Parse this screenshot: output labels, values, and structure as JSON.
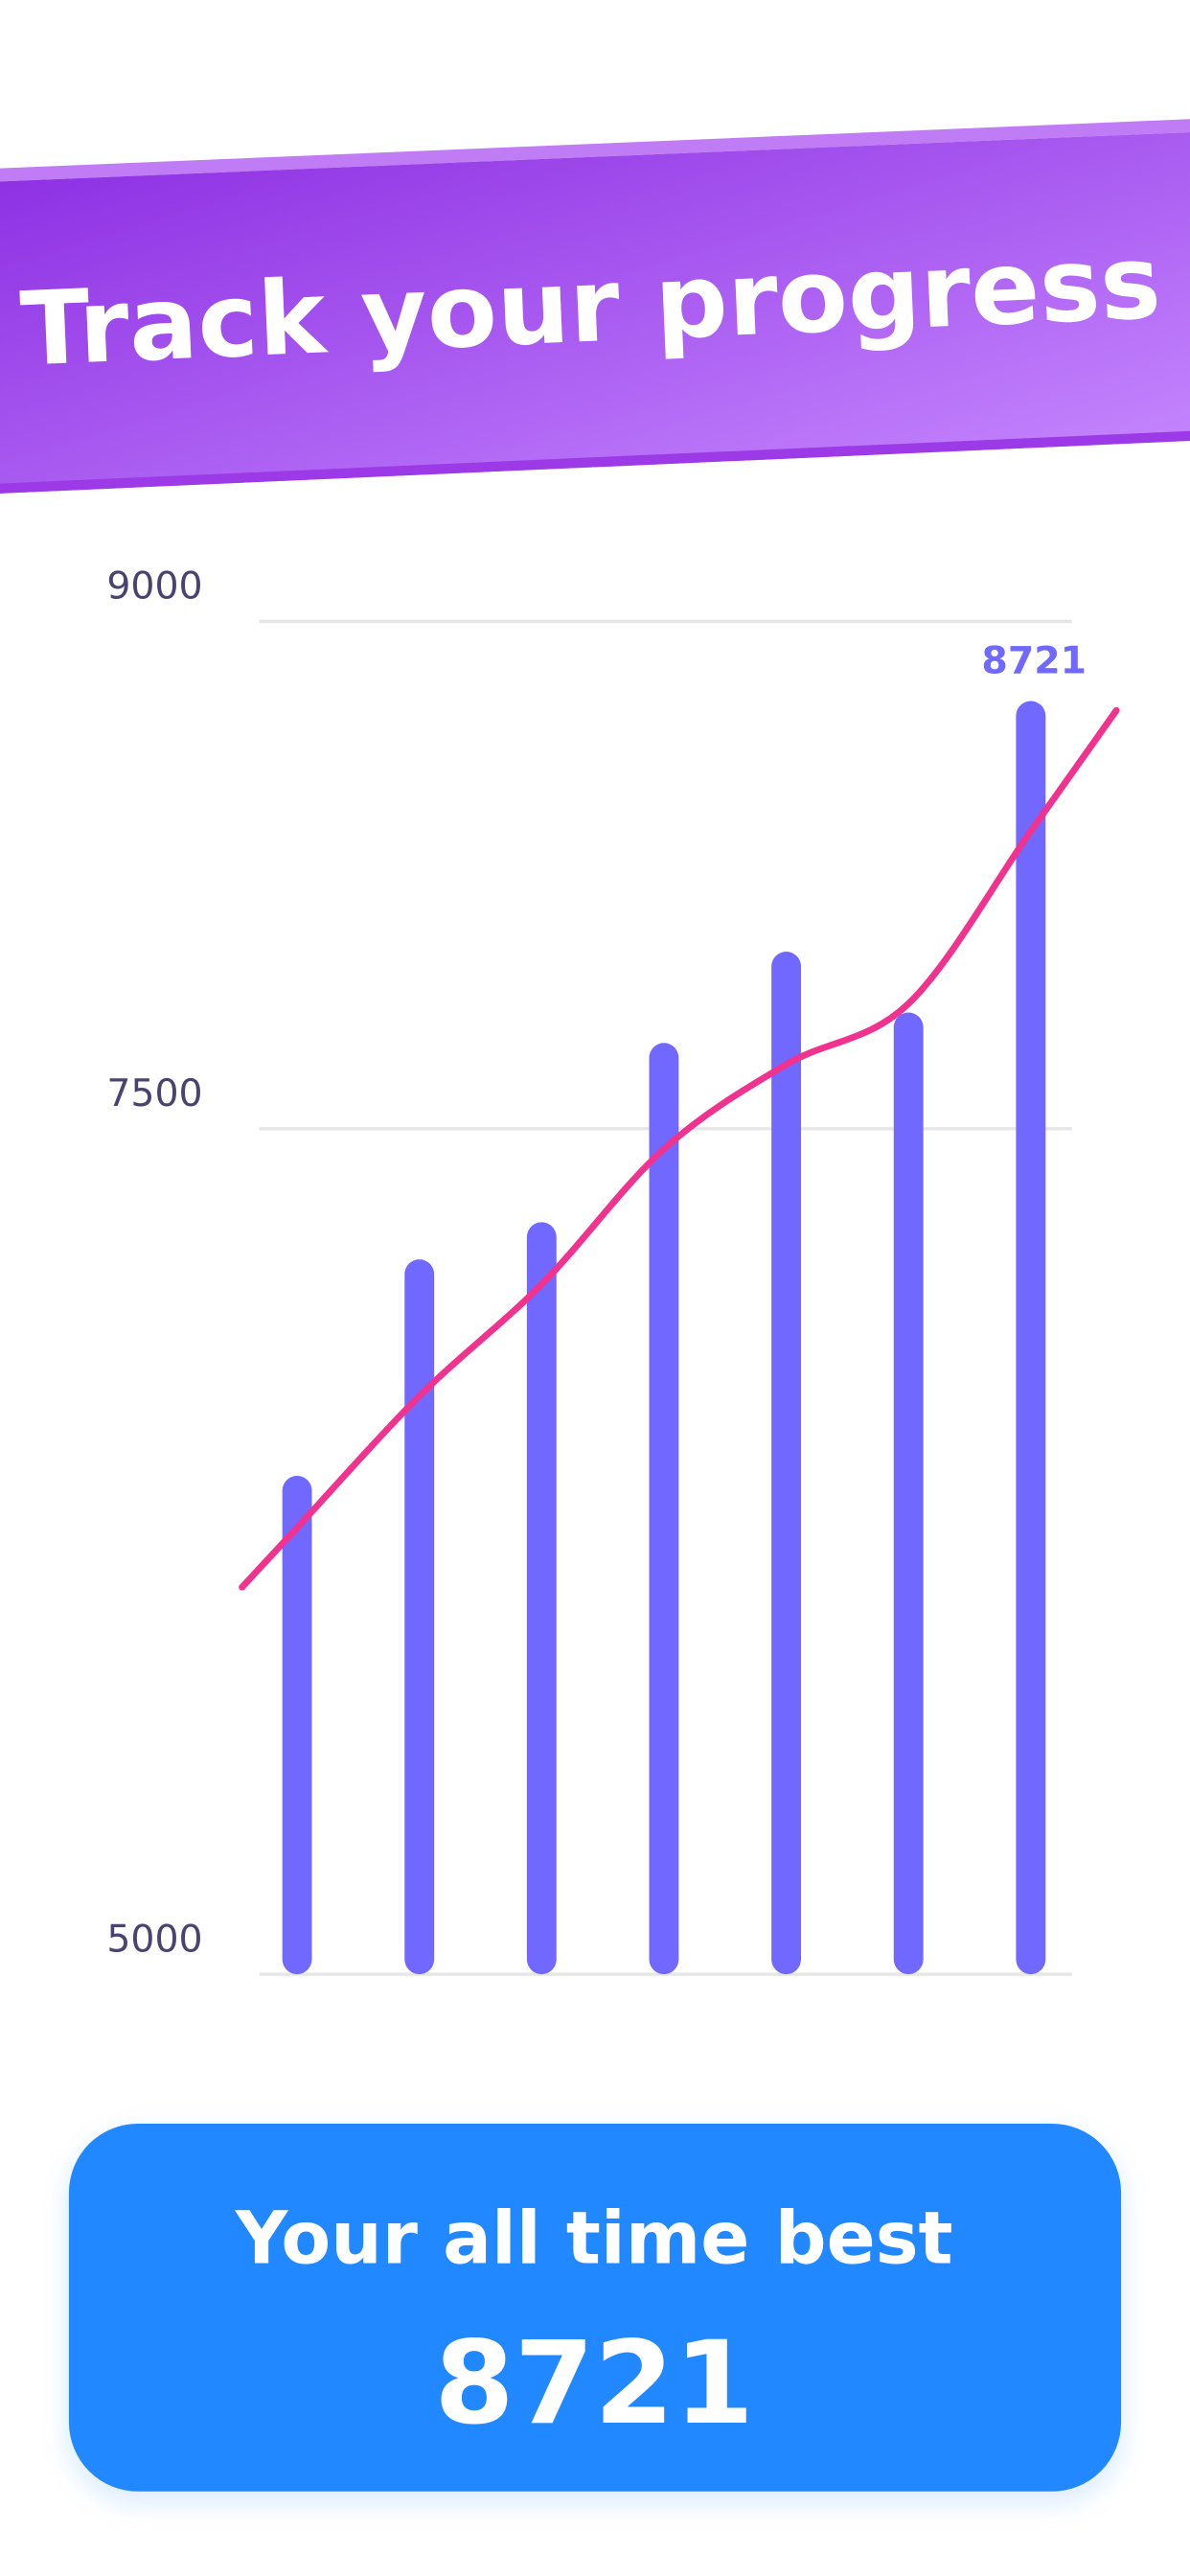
{
  "header": {
    "title": "Track your progress"
  },
  "chart_data": {
    "type": "bar",
    "categories": [
      null,
      null,
      null,
      null,
      null,
      null,
      null
    ],
    "series": [
      {
        "type": "bar",
        "color": "#7068ff",
        "values": [
          6430,
          7070,
          7180,
          7710,
          7980,
          7800,
          8721
        ]
      },
      {
        "type": "line",
        "color": "#f0338f",
        "values": [
          6320,
          6710,
          7040,
          7440,
          7690,
          7870,
          8380
        ]
      }
    ],
    "ylim": [
      5000,
      9000
    ],
    "yticks": [
      5000,
      7500,
      9000
    ],
    "grid": true
  },
  "card": {
    "label": "Your all time best",
    "value": 8721
  }
}
